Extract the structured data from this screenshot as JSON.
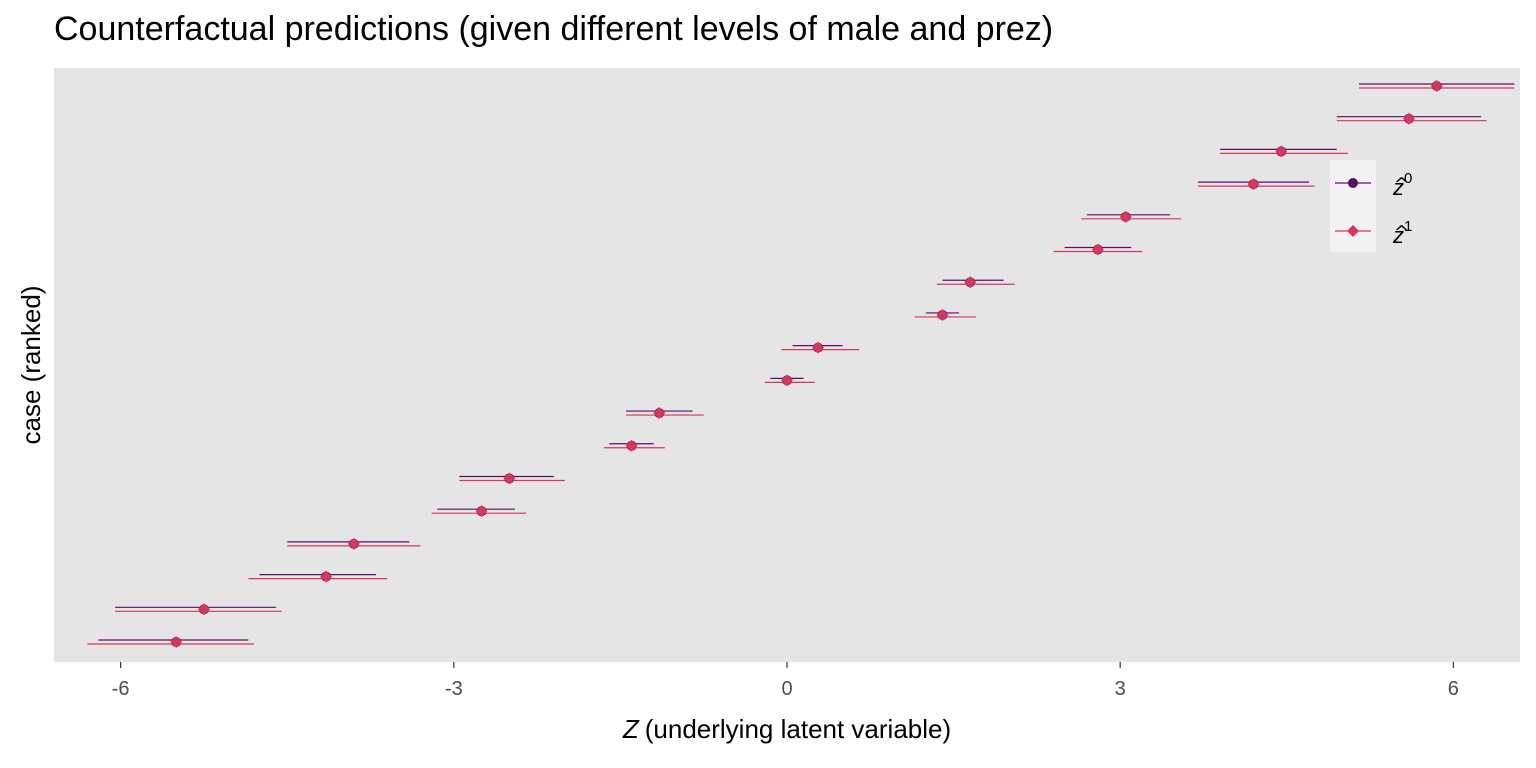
{
  "chart_data": {
    "type": "scatter",
    "title": "Counterfactual predictions (given different levels of male and prez)",
    "xlabel_italic": "Z",
    "xlabel_rest": "(underlying latent variable)",
    "ylabel": "case (ranked)",
    "xlim": [
      -6.6,
      6.6
    ],
    "x_ticks": [
      -6,
      -3,
      0,
      3,
      6
    ],
    "x_tick_labels": [
      "-6",
      "-3",
      "0",
      "3",
      "6"
    ],
    "grid": false,
    "legend_position": "right-inside",
    "series": [
      {
        "name": "z^0",
        "label_base": "z",
        "label_sup": "0",
        "marker": "circle",
        "color": "#5a0e6a"
      },
      {
        "name": "z^1",
        "label_base": "z",
        "label_sup": "1",
        "marker": "diamond",
        "color": "#d6375d"
      }
    ],
    "cases": [
      {
        "z0": -5.5,
        "lo0": -6.2,
        "hi0": -4.85,
        "z1": -5.5,
        "lo1": -6.3,
        "hi1": -4.8
      },
      {
        "z0": -5.25,
        "lo0": -6.05,
        "hi0": -4.6,
        "z1": -5.25,
        "lo1": -6.05,
        "hi1": -4.55
      },
      {
        "z0": -4.15,
        "lo0": -4.75,
        "hi0": -3.7,
        "z1": -4.15,
        "lo1": -4.85,
        "hi1": -3.6
      },
      {
        "z0": -3.9,
        "lo0": -4.5,
        "hi0": -3.4,
        "z1": -3.9,
        "lo1": -4.5,
        "hi1": -3.3
      },
      {
        "z0": -2.75,
        "lo0": -3.15,
        "hi0": -2.45,
        "z1": -2.75,
        "lo1": -3.2,
        "hi1": -2.35
      },
      {
        "z0": -2.5,
        "lo0": -2.95,
        "hi0": -2.1,
        "z1": -2.5,
        "lo1": -2.95,
        "hi1": -2.0
      },
      {
        "z0": -1.4,
        "lo0": -1.6,
        "hi0": -1.2,
        "z1": -1.4,
        "lo1": -1.65,
        "hi1": -1.1
      },
      {
        "z0": -1.15,
        "lo0": -1.45,
        "hi0": -0.85,
        "z1": -1.15,
        "lo1": -1.45,
        "hi1": -0.75
      },
      {
        "z0": 0.0,
        "lo0": -0.15,
        "hi0": 0.15,
        "z1": 0.0,
        "lo1": -0.2,
        "hi1": 0.25
      },
      {
        "z0": 0.28,
        "lo0": 0.05,
        "hi0": 0.5,
        "z1": 0.28,
        "lo1": -0.05,
        "hi1": 0.65
      },
      {
        "z0": 1.4,
        "lo0": 1.25,
        "hi0": 1.55,
        "z1": 1.4,
        "lo1": 1.15,
        "hi1": 1.7
      },
      {
        "z0": 1.65,
        "lo0": 1.4,
        "hi0": 1.95,
        "z1": 1.65,
        "lo1": 1.35,
        "hi1": 2.05
      },
      {
        "z0": 2.8,
        "lo0": 2.5,
        "hi0": 3.1,
        "z1": 2.8,
        "lo1": 2.4,
        "hi1": 3.2
      },
      {
        "z0": 3.05,
        "lo0": 2.7,
        "hi0": 3.45,
        "z1": 3.05,
        "lo1": 2.65,
        "hi1": 3.55
      },
      {
        "z0": 4.2,
        "lo0": 3.7,
        "hi0": 4.7,
        "z1": 4.2,
        "lo1": 3.7,
        "hi1": 4.75
      },
      {
        "z0": 4.45,
        "lo0": 3.9,
        "hi0": 4.95,
        "z1": 4.45,
        "lo1": 3.9,
        "hi1": 5.05
      },
      {
        "z0": 5.6,
        "lo0": 4.95,
        "hi0": 6.25,
        "z1": 5.6,
        "lo1": 4.95,
        "hi1": 6.3
      },
      {
        "z0": 5.85,
        "lo0": 5.15,
        "hi0": 6.55,
        "z1": 5.85,
        "lo1": 5.15,
        "hi1": 6.55
      }
    ]
  }
}
